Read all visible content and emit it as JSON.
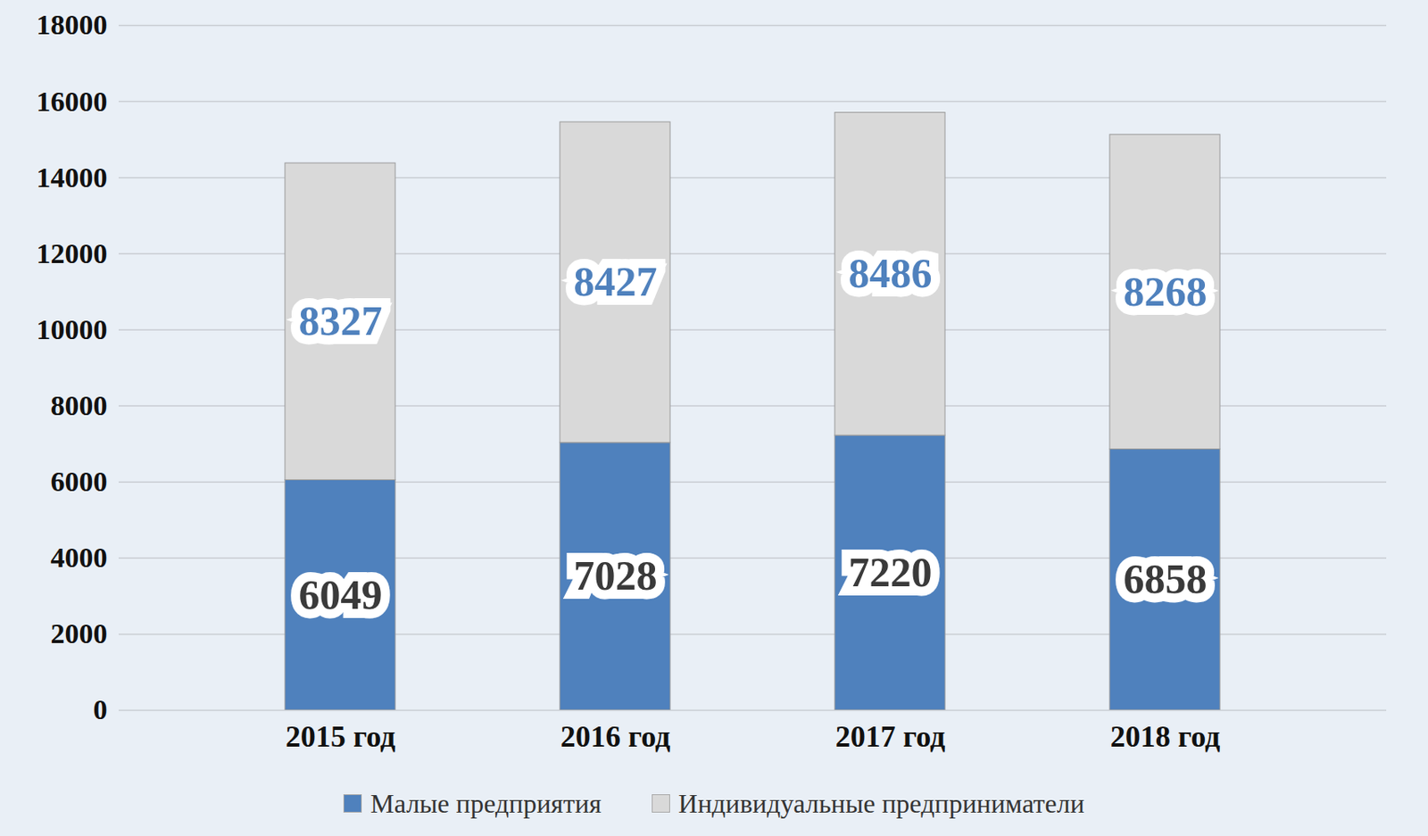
{
  "chart_data": {
    "type": "bar",
    "stacked": true,
    "categories": [
      "2015 год",
      "2016 год",
      "2017 год",
      "2018 год"
    ],
    "series": [
      {
        "name": "Малые предприятия",
        "color": "#4f81bd",
        "values": [
          6049,
          7028,
          7220,
          6858
        ]
      },
      {
        "name": "Индивидуальные предприниматели",
        "color": "#d9d9d9",
        "values": [
          8327,
          8427,
          8486,
          8268
        ]
      }
    ],
    "ylim": [
      0,
      18000
    ],
    "yticks": [
      0,
      2000,
      4000,
      6000,
      8000,
      10000,
      12000,
      14000,
      16000,
      18000
    ],
    "grid": true,
    "data_labels": true,
    "legend": "bottom"
  }
}
